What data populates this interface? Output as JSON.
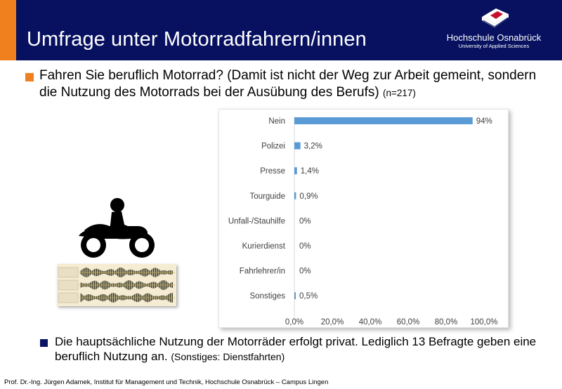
{
  "title": "Umfrage unter Motorradfahrern/innen",
  "logo": {
    "name": "Hochschule Osnabrück",
    "subtitle": "University of Applied Sciences"
  },
  "question": {
    "text": "Fahren Sie beruflich Motorrad? (Damit ist nicht der Weg zur Arbeit gemeint, sondern die Nutzung des Motorrads bei der Ausübung des Berufs)",
    "sample": "(n=217)"
  },
  "conclusion": {
    "text": "Die hauptsächliche Nutzung der Motorräder erfolgt privat. Lediglich 13 Befragte geben eine beruflich Nutzung an.",
    "note": "(Sonstiges: Dienstfahrten)"
  },
  "footer": "Prof. Dr.-Ing. Jürgen Adamek,  Institut für Management und Technik, Hochschule Osnabrück – Campus Lingen",
  "colors": {
    "header": "#071160",
    "accent": "#f07f1d",
    "bar": "#5b9bd5"
  },
  "chart_data": {
    "type": "bar",
    "orientation": "horizontal",
    "categories": [
      "Nein",
      "Polizei",
      "Presse",
      "Tourguide",
      "Unfall-/Stauhilfe",
      "Kurierdienst",
      "Fahrlehrer/in",
      "Sonstiges"
    ],
    "values": [
      94,
      3.2,
      1.4,
      0.9,
      0,
      0,
      0,
      0.5
    ],
    "value_labels": [
      "94%",
      "3,2%",
      "1,4%",
      "0,9%",
      "0%",
      "0%",
      "0%",
      "0,5%"
    ],
    "x_ticks": [
      "0,0%",
      "20,0%",
      "40,0%",
      "60,0%",
      "80,0%",
      "100,0%"
    ],
    "xlim": [
      0,
      100
    ],
    "grid": false,
    "legend": "none"
  }
}
